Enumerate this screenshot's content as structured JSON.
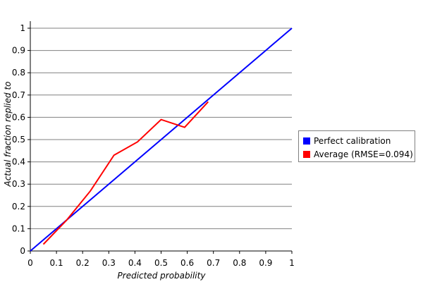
{
  "chart_data": {
    "type": "line",
    "xlabel": "Predicted probability",
    "ylabel": "Actual fraction replied to",
    "xlim": [
      0,
      1
    ],
    "ylim": [
      0,
      1
    ],
    "x_ticks": [
      "0",
      "0.1",
      "0.2",
      "0.3",
      "0.4",
      "0.5",
      "0.6",
      "0.7",
      "0.8",
      "0.9",
      "1"
    ],
    "y_ticks": [
      "0",
      "0.1",
      "0.2",
      "0.3",
      "0.4",
      "0.5",
      "0.6",
      "0.7",
      "0.8",
      "0.9",
      "1"
    ],
    "grid": "horizontal",
    "legend_position": "right",
    "series": [
      {
        "name": "Perfect calibration",
        "color": "#0000ff",
        "x": [
          0,
          1
        ],
        "y": [
          0,
          1
        ]
      },
      {
        "name": "Average (RMSE=0.094)",
        "color": "#ff0000",
        "x": [
          0.05,
          0.14,
          0.23,
          0.32,
          0.41,
          0.5,
          0.59,
          0.68
        ],
        "y": [
          0.03,
          0.14,
          0.27,
          0.43,
          0.49,
          0.59,
          0.555,
          0.67
        ]
      }
    ]
  }
}
